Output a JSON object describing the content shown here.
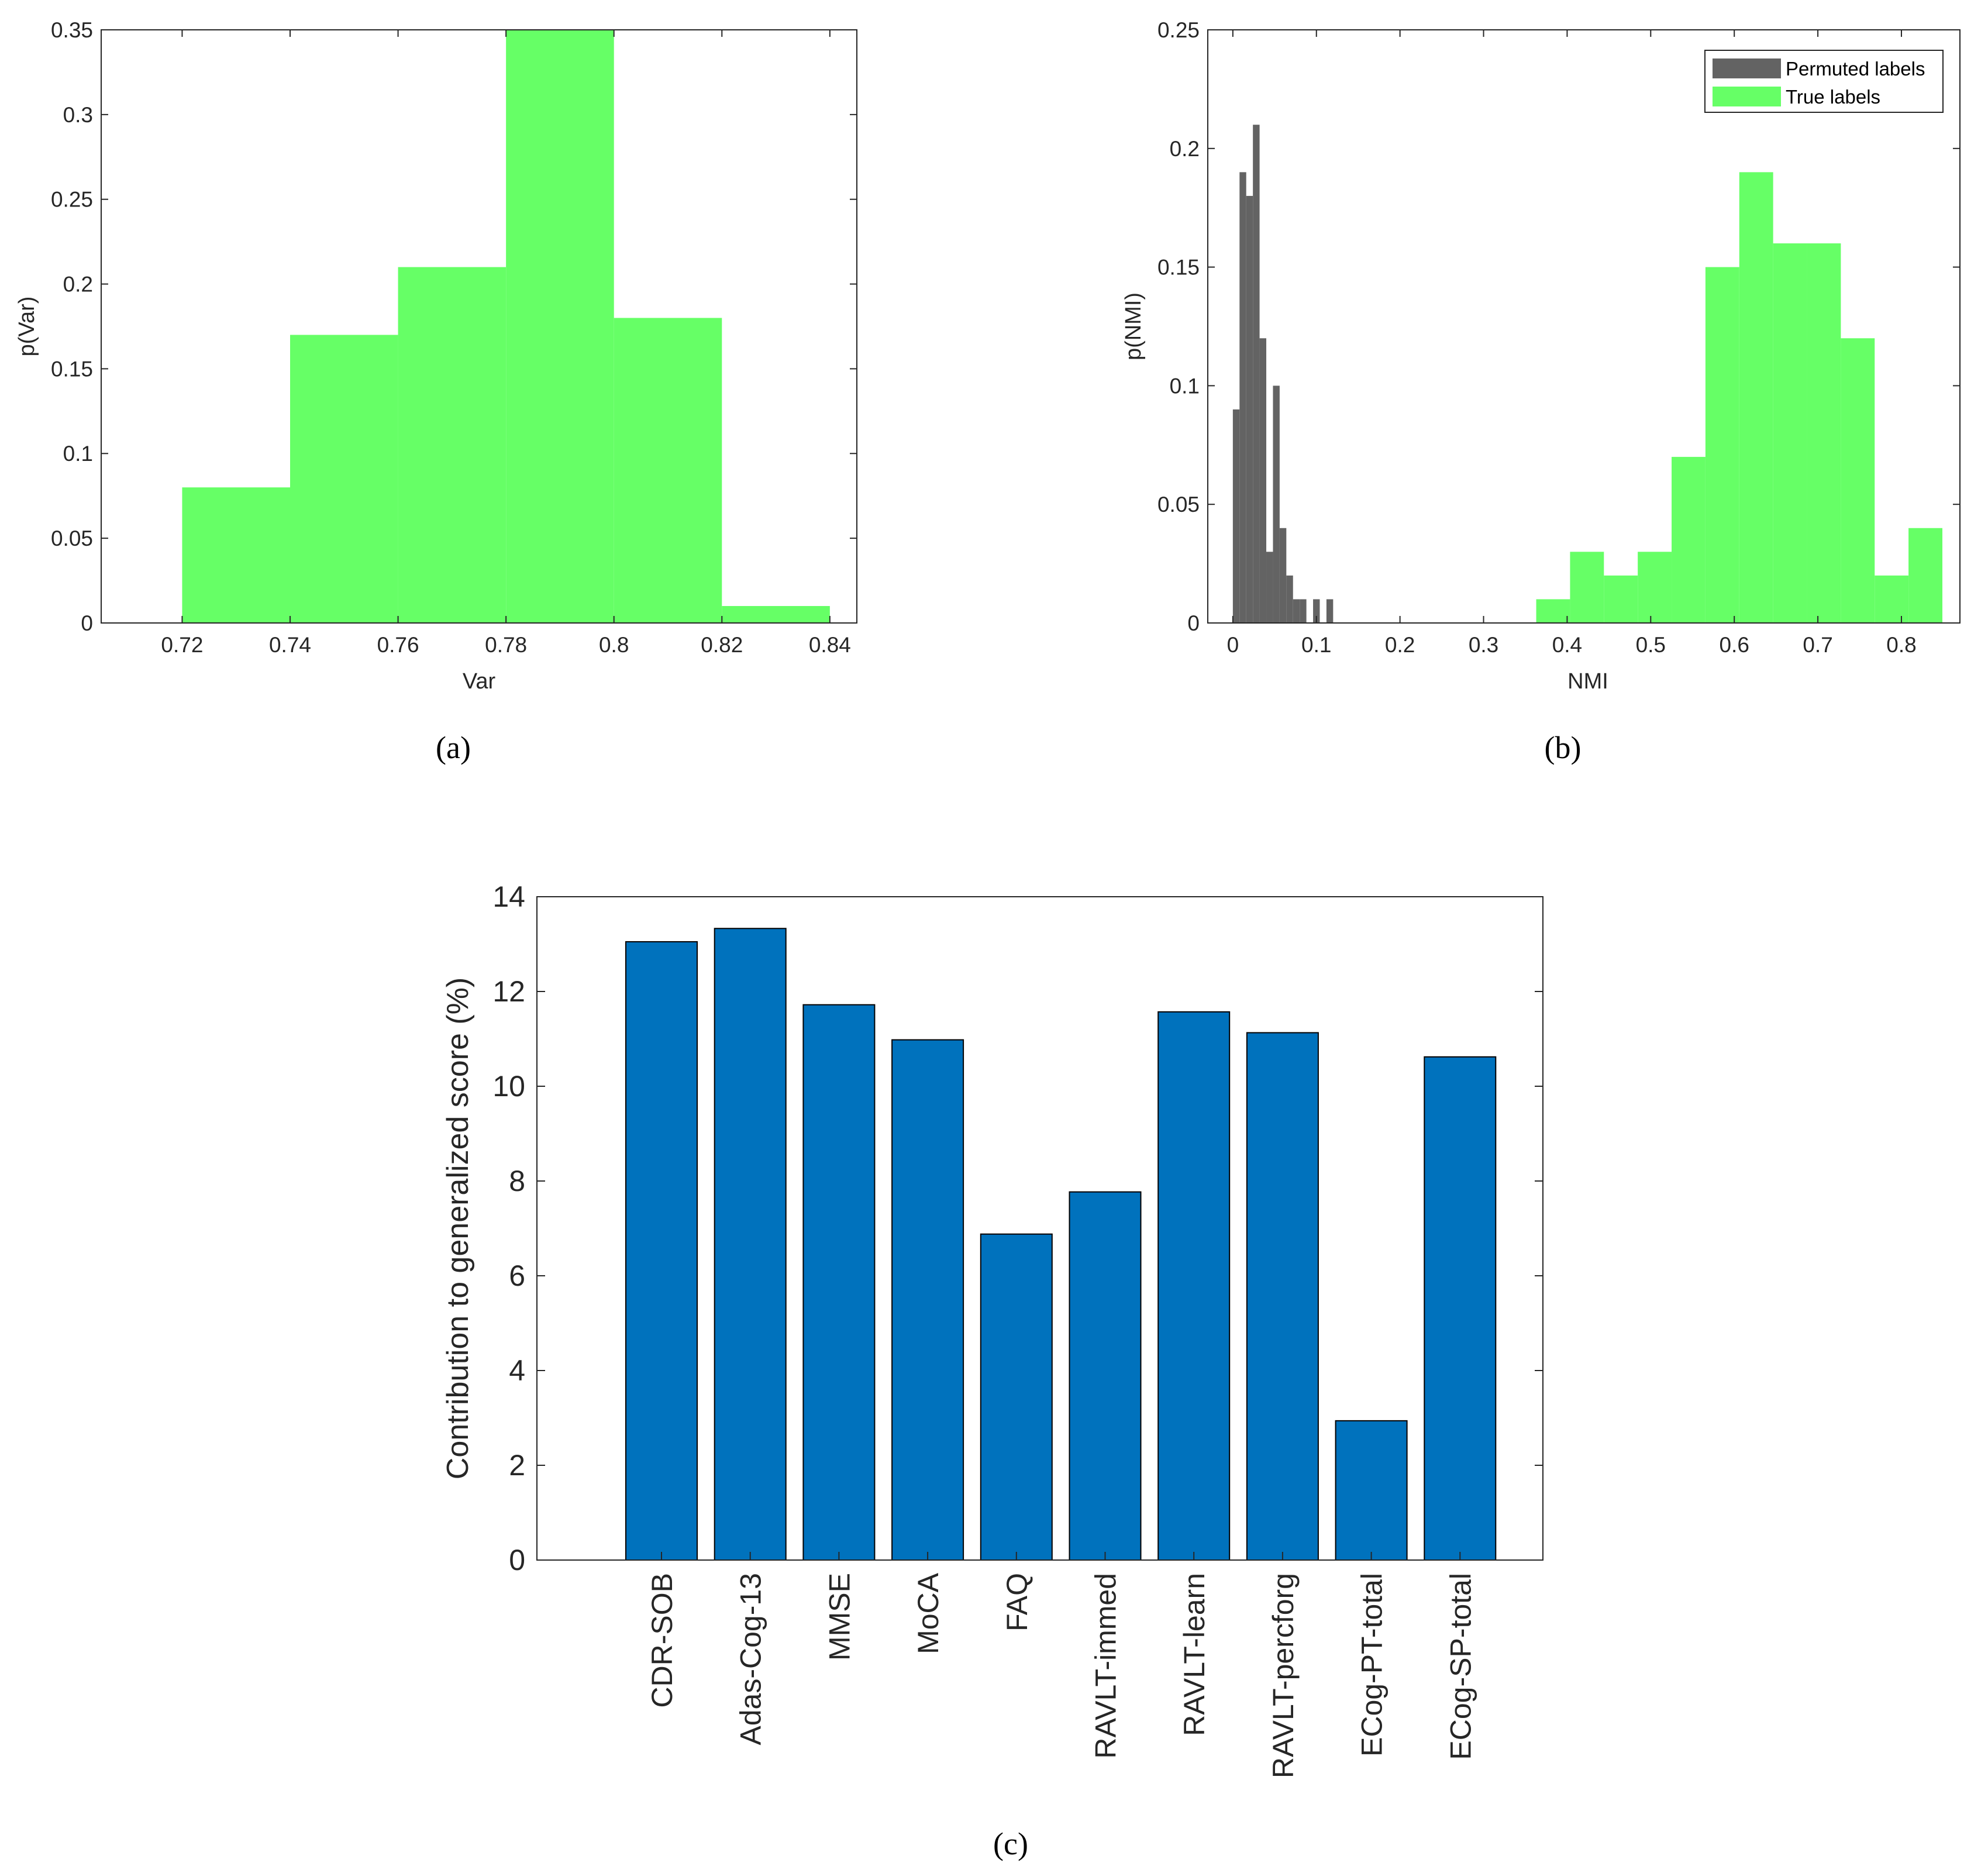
{
  "colors": {
    "green": "#66ff66",
    "gray": "#636363",
    "blue": "#0072bd",
    "axis": "#262626"
  },
  "chart_data": [
    {
      "id": "a",
      "type": "histogram",
      "caption": "(a)",
      "xlabel": "Var",
      "ylabel": "p(Var)",
      "xlim": [
        0.705,
        0.845
      ],
      "ylim": [
        0,
        0.35
      ],
      "xticks": [
        0.72,
        0.74,
        0.76,
        0.78,
        0.8,
        0.82,
        0.84
      ],
      "xtick_labels": [
        "0.72",
        "0.74",
        "0.76",
        "0.78",
        "0.8",
        "0.82",
        "0.84"
      ],
      "yticks": [
        0,
        0.05,
        0.1,
        0.15,
        0.2,
        0.25,
        0.3,
        0.35
      ],
      "ytick_labels": [
        "0",
        "0.05",
        "0.1",
        "0.15",
        "0.2",
        "0.25",
        "0.3",
        "0.35"
      ],
      "series": [
        {
          "name": "Var",
          "color": "#66ff66",
          "bin_edges": [
            0.72,
            0.74,
            0.76,
            0.78,
            0.8,
            0.82,
            0.84
          ],
          "values": [
            0.08,
            0.17,
            0.21,
            0.35,
            0.18,
            0.01
          ]
        }
      ]
    },
    {
      "id": "b",
      "type": "histogram",
      "caption": "(b)",
      "xlabel": "NMI",
      "ylabel": "p(NMI)",
      "xlim": [
        -0.03,
        0.87
      ],
      "ylim": [
        0,
        0.25
      ],
      "xticks": [
        0,
        0.1,
        0.2,
        0.3,
        0.4,
        0.5,
        0.6,
        0.7,
        0.8
      ],
      "xtick_labels": [
        "0",
        "0.1",
        "0.2",
        "0.3",
        "0.4",
        "0.5",
        "0.6",
        "0.7",
        "0.8"
      ],
      "yticks": [
        0,
        0.05,
        0.1,
        0.15,
        0.2,
        0.25
      ],
      "ytick_labels": [
        "0",
        "0.05",
        "0.1",
        "0.15",
        "0.2",
        "0.25"
      ],
      "legend_position": "top-right",
      "series": [
        {
          "name": "Permuted labels",
          "color": "#636363",
          "bin_edges": [
            0,
            0.008,
            0.016,
            0.024,
            0.032,
            0.04,
            0.048,
            0.056,
            0.064,
            0.072,
            0.08,
            0.088,
            0.096,
            0.104,
            0.112,
            0.12
          ],
          "values": [
            0.09,
            0.19,
            0.18,
            0.21,
            0.12,
            0.03,
            0.1,
            0.04,
            0.02,
            0.01,
            0.01,
            0,
            0.01,
            0,
            0.01
          ]
        },
        {
          "name": "True labels",
          "color": "#66ff66",
          "bin_edges": [
            0.363,
            0.4035,
            0.444,
            0.4845,
            0.525,
            0.5655,
            0.606,
            0.6465,
            0.687,
            0.7275,
            0.768,
            0.8085,
            0.849
          ],
          "values": [
            0.01,
            0.03,
            0.02,
            0.03,
            0.07,
            0.15,
            0.19,
            0.16,
            0.16,
            0.12,
            0.02,
            0.04
          ]
        }
      ]
    },
    {
      "id": "c",
      "type": "bar",
      "caption": "(c)",
      "xlabel": "",
      "ylabel": "Contribution to generalized score (%)",
      "ylim": [
        0,
        14
      ],
      "yticks": [
        0,
        2,
        4,
        6,
        8,
        10,
        12,
        14
      ],
      "ytick_labels": [
        "0",
        "2",
        "4",
        "6",
        "8",
        "10",
        "12",
        "14"
      ],
      "categories": [
        "CDR-SOB",
        "Adas-Cog-13",
        "MMSE",
        "MoCA",
        "FAQ",
        "RAVLT-immed",
        "RAVLT-learn",
        "RAVLT-percforg",
        "ECog-PT-total",
        "ECog-SP-total"
      ],
      "values": [
        13.05,
        13.33,
        11.72,
        10.98,
        6.88,
        7.77,
        11.57,
        11.13,
        2.94,
        10.62
      ],
      "color": "#0072bd"
    }
  ]
}
